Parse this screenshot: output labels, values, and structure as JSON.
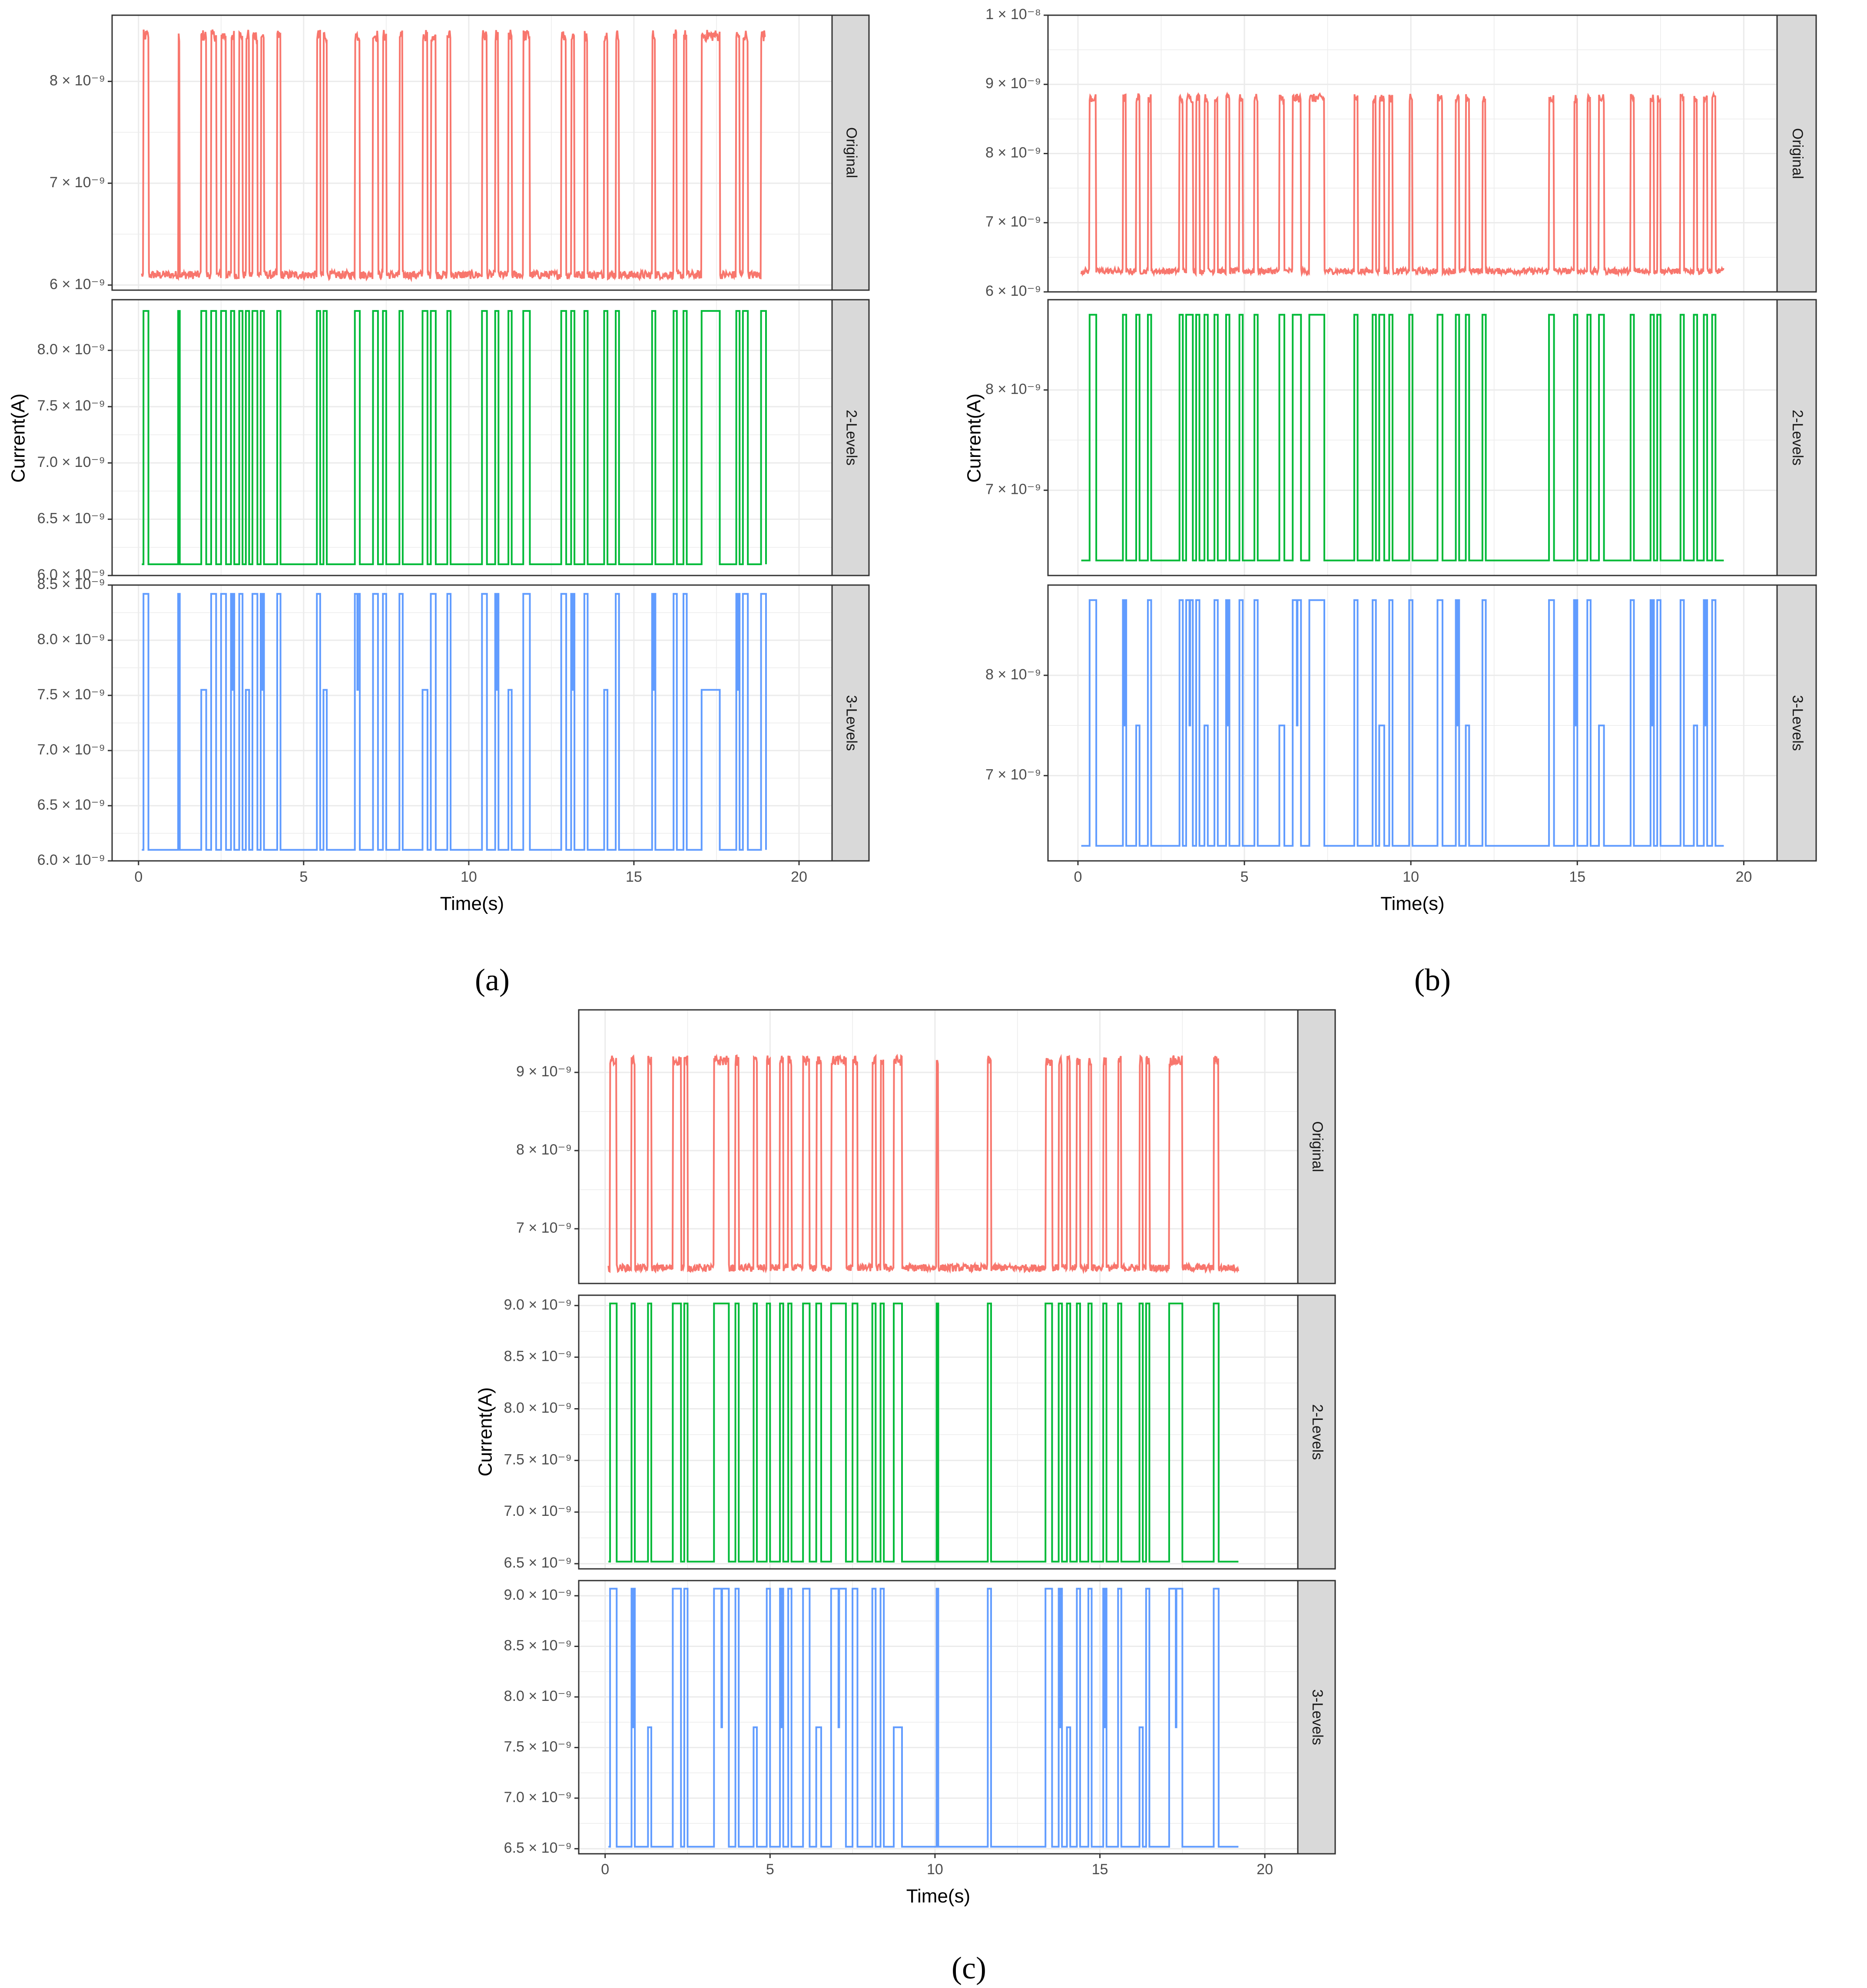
{
  "figure": {
    "subfigure_labels": [
      "(a)",
      "(b)",
      "(c)"
    ]
  },
  "colors": {
    "Original": "#F8766D",
    "2-Levels": "#00BA38",
    "3-Levels": "#619CFF",
    "grid": "#ebebeb",
    "strip_bg": "#d9d9d9",
    "panel_border": "#333333"
  },
  "chart_data": [
    {
      "type": "line",
      "label": "(a)",
      "xlabel": "Time(s)",
      "ylabel": "Current(A)",
      "xlim": [
        -0.8,
        21
      ],
      "xticks": [
        0,
        5,
        10,
        15,
        20
      ],
      "x_end": 19.0,
      "facets": [
        {
          "name": "Original",
          "ylim": [
            5.95e-09,
            8.65e-09
          ],
          "yticks": [
            {
              "v": 6e-09,
              "label": "6 × 10⁻⁹"
            },
            {
              "v": 7e-09,
              "label": "7 × 10⁻⁹"
            },
            {
              "v": 8e-09,
              "label": "8 × 10⁻⁹"
            }
          ],
          "low": 6.1e-09,
          "high": 8.45e-09
        },
        {
          "name": "2-Levels",
          "ylim": [
            6e-09,
            8.45e-09
          ],
          "yticks": [
            {
              "v": 6e-09,
              "label": "6.0 × 10⁻⁹"
            },
            {
              "v": 6.5e-09,
              "label": "6.5 × 10⁻⁹"
            },
            {
              "v": 7e-09,
              "label": "7.0 × 10⁻⁹"
            },
            {
              "v": 7.5e-09,
              "label": "7.5 × 10⁻⁹"
            },
            {
              "v": 8e-09,
              "label": "8.0 × 10⁻⁹"
            }
          ],
          "low": 6.1e-09,
          "high": 8.35e-09
        },
        {
          "name": "3-Levels",
          "ylim": [
            6e-09,
            8.5e-09
          ],
          "yticks": [
            {
              "v": 6e-09,
              "label": "6.0 × 10⁻⁹"
            },
            {
              "v": 6.5e-09,
              "label": "6.5 × 10⁻⁹"
            },
            {
              "v": 7e-09,
              "label": "7.0 × 10⁻⁹"
            },
            {
              "v": 7.5e-09,
              "label": "7.5 × 10⁻⁹"
            },
            {
              "v": 8e-09,
              "label": "8.0 × 10⁻⁹"
            },
            {
              "v": 8.5e-09,
              "label": "8.5 × 10⁻⁹"
            }
          ],
          "low": 6.1e-09,
          "mid": 7.55e-09,
          "high": 8.42e-09
        }
      ],
      "high_intervals": [
        [
          0.15,
          0.3
        ],
        [
          1.2,
          1.25
        ],
        [
          1.9,
          2.05
        ],
        [
          2.2,
          2.35
        ],
        [
          2.5,
          2.65
        ],
        [
          2.8,
          2.9
        ],
        [
          3.05,
          3.15
        ],
        [
          3.25,
          3.35
        ],
        [
          3.45,
          3.6
        ],
        [
          3.7,
          3.8
        ],
        [
          4.2,
          4.3
        ],
        [
          5.4,
          5.5
        ],
        [
          5.6,
          5.7
        ],
        [
          6.55,
          6.7
        ],
        [
          7.1,
          7.25
        ],
        [
          7.4,
          7.5
        ],
        [
          7.9,
          8.0
        ],
        [
          8.6,
          8.75
        ],
        [
          8.85,
          9.0
        ],
        [
          9.35,
          9.45
        ],
        [
          10.4,
          10.55
        ],
        [
          10.8,
          10.9
        ],
        [
          11.2,
          11.3
        ],
        [
          11.65,
          11.85
        ],
        [
          12.8,
          12.95
        ],
        [
          13.1,
          13.2
        ],
        [
          13.5,
          13.6
        ],
        [
          14.1,
          14.2
        ],
        [
          14.45,
          14.55
        ],
        [
          15.55,
          15.65
        ],
        [
          16.2,
          16.3
        ],
        [
          16.5,
          16.6
        ],
        [
          17.05,
          17.6
        ],
        [
          18.1,
          18.2
        ],
        [
          18.3,
          18.45
        ],
        [
          18.85,
          19.0
        ]
      ]
    },
    {
      "type": "line",
      "label": "(b)",
      "xlabel": "Time(s)",
      "ylabel": "Current(A)",
      "xlim": [
        -0.9,
        21
      ],
      "xticks": [
        0,
        5,
        10,
        15,
        20
      ],
      "x_end": 19.4,
      "facets": [
        {
          "name": "Original",
          "ylim": [
            6e-09,
            1e-08
          ],
          "yticks": [
            {
              "v": 6e-09,
              "label": "6 × 10⁻⁹"
            },
            {
              "v": 7e-09,
              "label": "7 × 10⁻⁹"
            },
            {
              "v": 8e-09,
              "label": "8 × 10⁻⁹"
            },
            {
              "v": 9e-09,
              "label": "9 × 10⁻⁹"
            },
            {
              "v": 1e-08,
              "label": "1 × 10⁻⁸"
            }
          ],
          "low": 6.3e-09,
          "high": 8.8e-09
        },
        {
          "name": "2-Levels",
          "ylim": [
            6.15e-09,
            8.9e-09
          ],
          "yticks": [
            {
              "v": 7e-09,
              "label": "7 × 10⁻⁹"
            },
            {
              "v": 8e-09,
              "label": "8 × 10⁻⁹"
            }
          ],
          "low": 6.3e-09,
          "high": 8.75e-09
        },
        {
          "name": "3-Levels",
          "ylim": [
            6.15e-09,
            8.9e-09
          ],
          "yticks": [
            {
              "v": 7e-09,
              "label": "7 × 10⁻⁹"
            },
            {
              "v": 8e-09,
              "label": "8 × 10⁻⁹"
            }
          ],
          "low": 6.3e-09,
          "mid": 7.5e-09,
          "high": 8.75e-09
        }
      ],
      "high_intervals": [
        [
          0.35,
          0.55
        ],
        [
          1.35,
          1.45
        ],
        [
          1.75,
          1.85
        ],
        [
          2.1,
          2.2
        ],
        [
          3.05,
          3.15
        ],
        [
          3.25,
          3.45
        ],
        [
          3.55,
          3.65
        ],
        [
          3.8,
          3.9
        ],
        [
          4.1,
          4.2
        ],
        [
          4.45,
          4.55
        ],
        [
          4.85,
          4.95
        ],
        [
          5.3,
          5.4
        ],
        [
          6.05,
          6.2
        ],
        [
          6.45,
          6.7
        ],
        [
          6.95,
          7.4
        ],
        [
          8.3,
          8.4
        ],
        [
          8.85,
          8.95
        ],
        [
          9.05,
          9.2
        ],
        [
          9.35,
          9.45
        ],
        [
          9.95,
          10.05
        ],
        [
          10.8,
          10.95
        ],
        [
          11.35,
          11.45
        ],
        [
          11.65,
          11.75
        ],
        [
          12.15,
          12.25
        ],
        [
          14.15,
          14.3
        ],
        [
          14.9,
          15.0
        ],
        [
          15.3,
          15.4
        ],
        [
          15.65,
          15.8
        ],
        [
          16.6,
          16.7
        ],
        [
          17.2,
          17.3
        ],
        [
          17.4,
          17.5
        ],
        [
          18.1,
          18.2
        ],
        [
          18.5,
          18.6
        ],
        [
          18.8,
          18.9
        ],
        [
          19.05,
          19.15
        ]
      ]
    },
    {
      "type": "line",
      "label": "(c)",
      "xlabel": "Time(s)",
      "ylabel": "Current(A)",
      "xlim": [
        -0.8,
        21
      ],
      "xticks": [
        0,
        5,
        10,
        15,
        20
      ],
      "x_end": 19.2,
      "facets": [
        {
          "name": "Original",
          "ylim": [
            6.3e-09,
            9.8e-09
          ],
          "yticks": [
            {
              "v": 7e-09,
              "label": "7 × 10⁻⁹"
            },
            {
              "v": 8e-09,
              "label": "8 × 10⁻⁹"
            },
            {
              "v": 9e-09,
              "label": "9 × 10⁻⁹"
            }
          ],
          "low": 6.5e-09,
          "high": 9.15e-09
        },
        {
          "name": "2-Levels",
          "ylim": [
            6.45e-09,
            9.1e-09
          ],
          "yticks": [
            {
              "v": 6.5e-09,
              "label": "6.5 × 10⁻⁹"
            },
            {
              "v": 7e-09,
              "label": "7.0 × 10⁻⁹"
            },
            {
              "v": 7.5e-09,
              "label": "7.5 × 10⁻⁹"
            },
            {
              "v": 8e-09,
              "label": "8.0 × 10⁻⁹"
            },
            {
              "v": 8.5e-09,
              "label": "8.5 × 10⁻⁹"
            },
            {
              "v": 9e-09,
              "label": "9.0 × 10⁻⁹"
            }
          ],
          "low": 6.52e-09,
          "high": 9.02e-09
        },
        {
          "name": "3-Levels",
          "ylim": [
            6.45e-09,
            9.15e-09
          ],
          "yticks": [
            {
              "v": 6.5e-09,
              "label": "6.5 × 10⁻⁹"
            },
            {
              "v": 7e-09,
              "label": "7.0 × 10⁻⁹"
            },
            {
              "v": 7.5e-09,
              "label": "7.5 × 10⁻⁹"
            },
            {
              "v": 8e-09,
              "label": "8.0 × 10⁻⁹"
            },
            {
              "v": 8.5e-09,
              "label": "8.5 × 10⁻⁹"
            },
            {
              "v": 9e-09,
              "label": "9.0 × 10⁻⁹"
            }
          ],
          "low": 6.52e-09,
          "mid": 7.7e-09,
          "high": 9.07e-09
        }
      ],
      "high_intervals": [
        [
          0.15,
          0.35
        ],
        [
          0.8,
          0.9
        ],
        [
          1.3,
          1.4
        ],
        [
          2.05,
          2.3
        ],
        [
          2.4,
          2.5
        ],
        [
          3.3,
          3.75
        ],
        [
          3.95,
          4.05
        ],
        [
          4.5,
          4.6
        ],
        [
          4.9,
          5.0
        ],
        [
          5.3,
          5.4
        ],
        [
          5.55,
          5.65
        ],
        [
          6.0,
          6.2
        ],
        [
          6.4,
          6.55
        ],
        [
          6.85,
          7.3
        ],
        [
          7.5,
          7.65
        ],
        [
          8.1,
          8.2
        ],
        [
          8.35,
          8.45
        ],
        [
          8.75,
          9.0
        ],
        [
          10.05,
          10.1
        ],
        [
          11.6,
          11.7
        ],
        [
          13.35,
          13.55
        ],
        [
          13.75,
          13.85
        ],
        [
          14.0,
          14.1
        ],
        [
          14.3,
          14.4
        ],
        [
          14.65,
          14.75
        ],
        [
          15.1,
          15.2
        ],
        [
          15.55,
          15.65
        ],
        [
          16.2,
          16.3
        ],
        [
          16.4,
          16.5
        ],
        [
          17.1,
          17.5
        ],
        [
          18.45,
          18.6
        ]
      ]
    }
  ]
}
